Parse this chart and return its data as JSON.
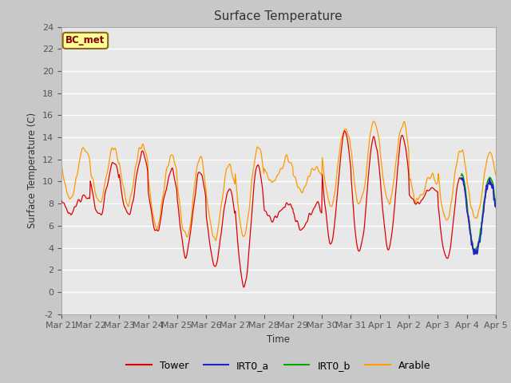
{
  "title": "Surface Temperature",
  "ylabel": "Surface Temperature (C)",
  "xlabel": "Time",
  "ylim": [
    -2,
    24
  ],
  "figsize": [
    6.4,
    4.8
  ],
  "dpi": 100,
  "fig_bg_color": "#c8c8c8",
  "plot_bg_color": "#e8e8e8",
  "annotation_label": "BC_met",
  "annotation_bg": "#ffff99",
  "annotation_border": "#8B6914",
  "annotation_text_color": "#8B0000",
  "grid_color": "#ffffff",
  "series": {
    "Tower": {
      "color": "#dd0000",
      "lw": 0.9,
      "zorder": 3
    },
    "IRT0_a": {
      "color": "#2222cc",
      "lw": 1.2,
      "zorder": 5
    },
    "IRT0_b": {
      "color": "#00aa00",
      "lw": 1.2,
      "zorder": 4
    },
    "Arable": {
      "color": "#ff9900",
      "lw": 0.9,
      "zorder": 2
    }
  },
  "xtick_labels": [
    "Mar 21",
    "Mar 22",
    "Mar 23",
    "Mar 24",
    "Mar 25",
    "Mar 26",
    "Mar 27",
    "Mar 28",
    "Mar 29",
    "Mar 30",
    "Mar 31",
    "Apr 1",
    "Apr 2",
    "Apr 3",
    "Apr 4",
    "Apr 5"
  ],
  "ytick_values": [
    -2,
    0,
    2,
    4,
    6,
    8,
    10,
    12,
    14,
    16,
    18,
    20,
    22,
    24
  ]
}
